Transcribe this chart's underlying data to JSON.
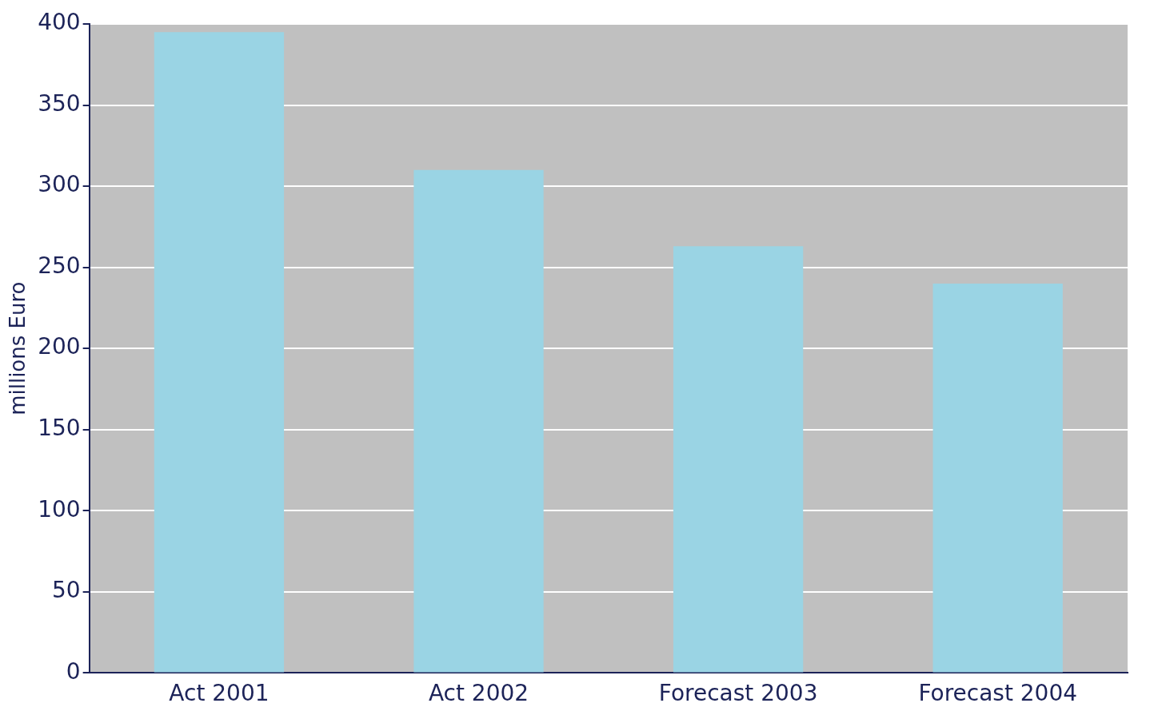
{
  "chart_data": {
    "type": "bar",
    "ylabel": "millions Euro",
    "categories": [
      "Act 2001",
      "Act 2002",
      "Forecast 2003",
      "Forecast 2004"
    ],
    "values": [
      395,
      310,
      263,
      240
    ],
    "color": "#9ad4e4",
    "ylim": [
      0,
      400
    ],
    "yticks": [
      0,
      50,
      100,
      150,
      200,
      250,
      300,
      350,
      400
    ],
    "grid": "y"
  }
}
